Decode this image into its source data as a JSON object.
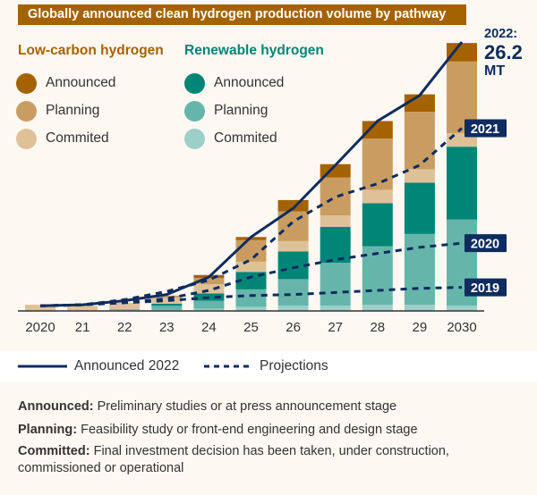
{
  "chart_data": {
    "type": "bar",
    "title": "Globally announced clean hydrogen production volume by pathway",
    "categories": [
      "2020",
      "21",
      "22",
      "23",
      "24",
      "25",
      "26",
      "27",
      "28",
      "29",
      "2030"
    ],
    "stacked": true,
    "ylim": [
      0,
      26.2
    ],
    "grid": false,
    "groups": [
      {
        "name": "Low-carbon hydrogen",
        "color": "#a56200"
      },
      {
        "name": "Renewable hydrogen",
        "color": "#008577"
      }
    ],
    "series": [
      {
        "group": "Renewable hydrogen",
        "name": "Commited",
        "color": "#9ccfc8",
        "values": [
          0,
          0,
          0.1,
          0.1,
          0.2,
          0.4,
          0.5,
          0.5,
          0.6,
          0.6,
          0.5
        ]
      },
      {
        "group": "Renewable hydrogen",
        "name": "Planning",
        "color": "#66b5ab",
        "values": [
          0,
          0,
          0.1,
          0.4,
          0.8,
          1.7,
          2.6,
          4.2,
          5.7,
          6.9,
          8.4
        ]
      },
      {
        "group": "Renewable hydrogen",
        "name": "Announced",
        "color": "#008577",
        "values": [
          0,
          0,
          0,
          0.2,
          0.7,
          1.7,
          2.7,
          3.5,
          4.2,
          5.0,
          7.1
        ]
      },
      {
        "group": "Low-carbon hydrogen",
        "name": "Commited",
        "color": "#dfc198",
        "values": [
          0.6,
          0.5,
          0.6,
          0.6,
          0.9,
          1.0,
          1.0,
          1.1,
          1.3,
          1.3,
          1.3
        ]
      },
      {
        "group": "Low-carbon hydrogen",
        "name": "Planning",
        "color": "#c99d62",
        "values": [
          0,
          0,
          0,
          0.2,
          0.6,
          2.1,
          2.9,
          3.7,
          5.0,
          5.6,
          7.0
        ]
      },
      {
        "group": "Low-carbon hydrogen",
        "name": "Announced",
        "color": "#a56200",
        "values": [
          0,
          0,
          0,
          0,
          0.3,
          0.3,
          1.1,
          1.3,
          1.7,
          1.7,
          1.8
        ]
      }
    ],
    "lines": [
      {
        "name": "Announced 2022",
        "style": "solid",
        "color": "#0e2c5e",
        "values": [
          0.5,
          0.6,
          1.0,
          1.6,
          3.3,
          7.2,
          10.0,
          14.2,
          18.5,
          21.0,
          26.2
        ]
      },
      {
        "name": "2021",
        "style": "dashed",
        "color": "#0e2c5e",
        "values": [
          0.5,
          0.6,
          1.1,
          1.9,
          3.0,
          5.0,
          8.7,
          11.1,
          12.4,
          14.2,
          17.8
        ]
      },
      {
        "name": "2020",
        "style": "dashed",
        "color": "#0e2c5e",
        "values": [
          0.5,
          0.6,
          0.8,
          1.2,
          2.0,
          3.3,
          4.2,
          5.0,
          5.6,
          6.2,
          6.6
        ]
      },
      {
        "name": "2019",
        "style": "dashed",
        "color": "#0e2c5e",
        "values": [
          0.5,
          0.6,
          0.8,
          1.0,
          1.3,
          1.5,
          1.6,
          1.8,
          2.0,
          2.2,
          2.3
        ]
      }
    ],
    "annotation": {
      "year": "2022:",
      "value": "26.2",
      "unit": "MT"
    },
    "line_legend": {
      "solid": "Announced 2022",
      "dashed": "Projections"
    }
  },
  "legend": {
    "low_carbon": {
      "heading": "Low-carbon hydrogen",
      "items": [
        "Announced",
        "Planning",
        "Commited"
      ]
    },
    "renewable": {
      "heading": "Renewable hydrogen",
      "items": [
        "Announced",
        "Planning",
        "Commited"
      ]
    }
  },
  "notes": [
    {
      "term": "Announced:",
      "text": " Preliminary studies or at press announcement stage"
    },
    {
      "term": "Planning:",
      "text": " Feasibility study or front-end engineering and design stage"
    },
    {
      "term": "Committed:",
      "text": " Final investment decision has been taken, under construction, commissioned or operational"
    }
  ]
}
